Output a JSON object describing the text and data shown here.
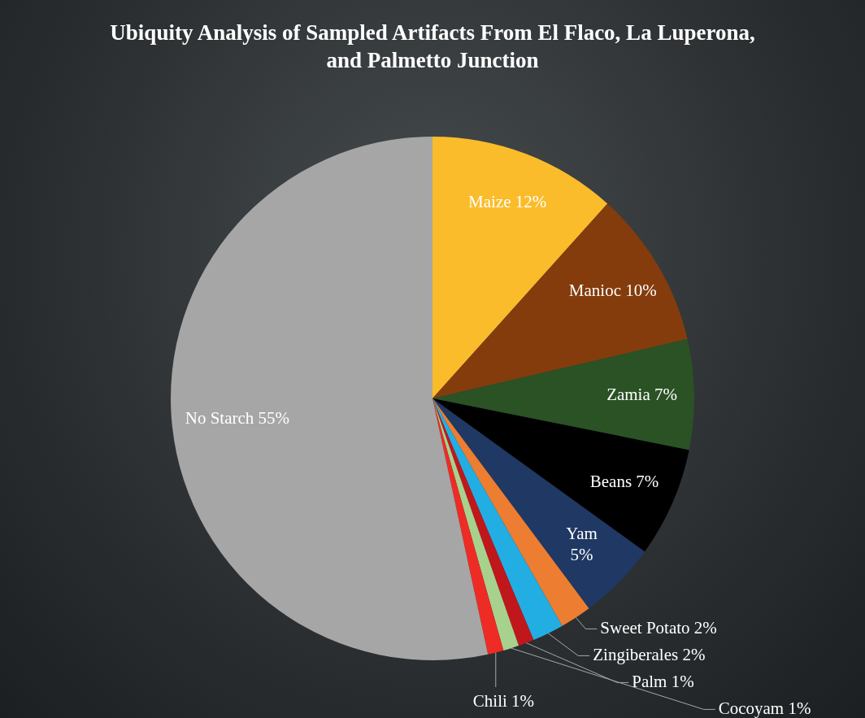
{
  "chart_data": {
    "type": "pie",
    "title": "Ubiquity Analysis of Sampled Artifacts From El Flaco, La Luperona, and Palmetto Junction",
    "categories": [
      "Maize",
      "Manioc",
      "Zamia",
      "Beans",
      "Yam",
      "Sweet Potato",
      "Zingiberales",
      "Palm",
      "Cocoyam",
      "Chili",
      "No Starch"
    ],
    "values": [
      12,
      10,
      7,
      7,
      5,
      2,
      2,
      1,
      1,
      1,
      55
    ],
    "value_labels": [
      "12%",
      "10%",
      "7%",
      "7%",
      "5%",
      "2%",
      "2%",
      "1%",
      "1%",
      "1%",
      "55%"
    ],
    "colors": [
      "#fbbc2b",
      "#843c0c",
      "#2a5225",
      "#000000",
      "#1f3864",
      "#ed7d31",
      "#22aee3",
      "#c0171c",
      "#a9d18e",
      "#ee2b24",
      "#a6a6a6"
    ],
    "legend": false
  }
}
